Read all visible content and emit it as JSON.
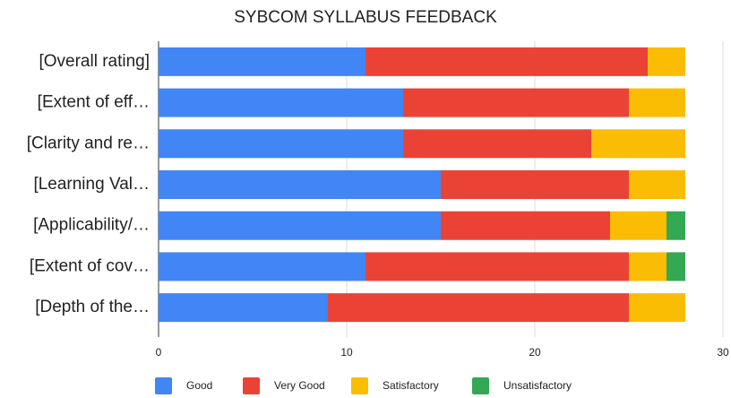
{
  "chart_data": {
    "type": "stacked_barh",
    "title": "SYBCOM SYLLABUS FEEDBACK",
    "categories": [
      "[Overall rating]",
      "[Extent of eff…",
      "[Clarity and re…",
      "[Learning Val…",
      "[Applicability/…",
      "[Extent of cov…",
      "[Depth of the…"
    ],
    "series": [
      {
        "name": "Good",
        "color": "#4285f4",
        "values": [
          11,
          13,
          13,
          15,
          15,
          11,
          9
        ]
      },
      {
        "name": "Very Good",
        "color": "#ea4335",
        "values": [
          15,
          12,
          10,
          10,
          9,
          14,
          16
        ]
      },
      {
        "name": "Satisfactory",
        "color": "#fbbc04",
        "values": [
          2,
          3,
          5,
          3,
          3,
          2,
          3
        ]
      },
      {
        "name": "Unsatisfactory",
        "color": "#34a853",
        "values": [
          0,
          0,
          0,
          0,
          1,
          1,
          0
        ]
      }
    ],
    "xlim": [
      0,
      30
    ],
    "xticks": [
      0,
      10,
      20,
      30
    ],
    "grid": true,
    "legend": "bottom"
  }
}
